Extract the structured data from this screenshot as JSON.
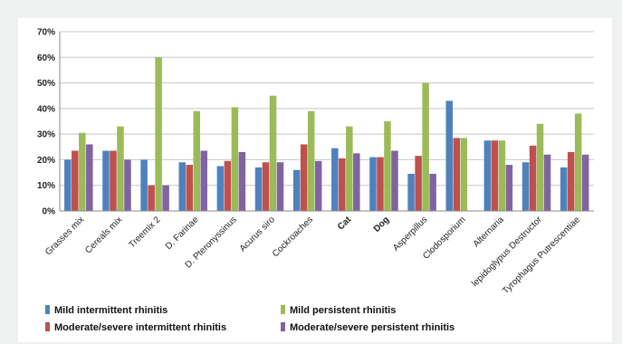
{
  "chart_data": {
    "type": "bar",
    "title": "",
    "xlabel": "",
    "ylabel": "",
    "ylim": [
      0,
      70
    ],
    "y_ticks": [
      "0%",
      "10%",
      "20%",
      "30%",
      "40%",
      "50%",
      "60%",
      "70%"
    ],
    "grid": "horizontal",
    "legend_position": "bottom",
    "categories": [
      "Grasses mix",
      "Cereals mix",
      "Treemix 2",
      "D. Farinae",
      "D. Pteronyssinus",
      "Acurus siro",
      "Cockroaches",
      "Cat",
      "Dog",
      "Asperpillus",
      "Clodosporium",
      "Alternaria",
      "lepidoglypus Destructor",
      "Tyrophagus Putrescentiae"
    ],
    "series": [
      {
        "name": "Mild intermittent rhinitis",
        "color": "#4f81bd",
        "values": [
          20,
          23.5,
          20,
          19,
          17.5,
          17,
          16,
          24.5,
          21,
          14.5,
          43,
          27.5,
          19,
          17
        ]
      },
      {
        "name": "Moderate/severe intermittent rhinitis",
        "color": "#c0504d",
        "values": [
          23.5,
          23.5,
          10,
          18,
          19.5,
          19,
          26,
          20.5,
          21,
          21.5,
          28.5,
          27.5,
          25.5,
          23
        ]
      },
      {
        "name": "Mild persistent rhinitis",
        "color": "#9bbb59",
        "values": [
          30.5,
          33,
          60,
          39,
          40.5,
          45,
          39,
          33,
          35,
          50,
          28.5,
          27.5,
          34,
          38
        ]
      },
      {
        "name": "Moderate/severe persistent rhinitis",
        "color": "#8064a2",
        "values": [
          26,
          20,
          10,
          23.5,
          23,
          19,
          19.5,
          22.5,
          23.5,
          14.5,
          0,
          18,
          22,
          22
        ]
      }
    ],
    "bold_category_labels": [
      "Cat",
      "Dog"
    ]
  }
}
